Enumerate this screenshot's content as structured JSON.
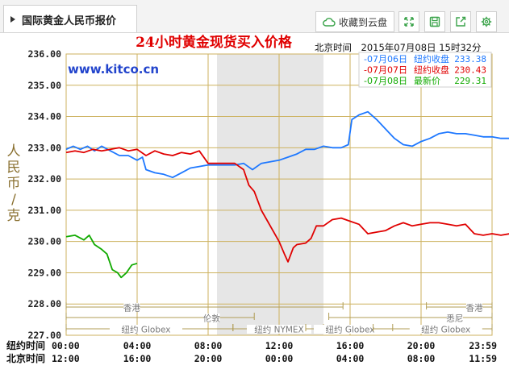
{
  "tab": {
    "title": "国际黄金人民币报价"
  },
  "toolbar": {
    "save_cloud_label": "收藏到云盘"
  },
  "colors": {
    "day1": "#1e78ff",
    "day2": "#e00000",
    "day3": "#11aa00",
    "title": "#e00000",
    "kitco": "#2244cc",
    "grid": "#cdb25f",
    "shade": "#e6e6e6"
  },
  "chart_data": {
    "type": "line",
    "title": "24小时黄金现货买入价格",
    "watermark": "www.kitco.cn",
    "timestamp": "北京时间　2015年07月08日 15时32分",
    "ylabel": "人民币/克",
    "ylim": [
      227,
      236
    ],
    "yticks": [
      "236.00",
      "235.00",
      "234.00",
      "233.00",
      "232.00",
      "231.00",
      "230.00",
      "229.00",
      "228.00",
      "227.00"
    ],
    "x_hours": [
      0,
      24
    ],
    "xaxis_rows": [
      {
        "label": "纽约时间",
        "ticks": [
          "00:00",
          "04:00",
          "08:00",
          "12:00",
          "16:00",
          "20:00",
          "23:59"
        ]
      },
      {
        "label": "北京时间",
        "ticks": [
          "12:00",
          "16:00",
          "20:00",
          "00:00",
          "04:00",
          "08:00",
          "11:59"
        ]
      }
    ],
    "markets": [
      "香港",
      "伦敦",
      "纽约 Globex",
      "纽约 NYMEX",
      "纽约 Globex",
      "香港",
      "悉尼",
      "纽约 Globex"
    ],
    "legend": [
      {
        "date": "07月06日",
        "label": "纽约收盘",
        "value": "233.38"
      },
      {
        "date": "07月07日",
        "label": "纽约收盘",
        "value": "230.43"
      },
      {
        "date": "07月08日",
        "label": "最新价",
        "value": "229.31"
      }
    ],
    "series": [
      {
        "name": "07月06日",
        "points": [
          [
            0,
            232.95
          ],
          [
            0.4,
            233.05
          ],
          [
            0.8,
            232.95
          ],
          [
            1.2,
            233.05
          ],
          [
            1.6,
            232.9
          ],
          [
            2,
            233.05
          ],
          [
            2.5,
            232.9
          ],
          [
            3,
            232.75
          ],
          [
            3.5,
            232.75
          ],
          [
            4,
            232.6
          ],
          [
            4.3,
            232.7
          ],
          [
            4.5,
            232.3
          ],
          [
            5,
            232.2
          ],
          [
            5.5,
            232.15
          ],
          [
            6,
            232.05
          ],
          [
            6.5,
            232.2
          ],
          [
            7,
            232.35
          ],
          [
            7.5,
            232.4
          ],
          [
            8,
            232.45
          ],
          [
            8.5,
            232.45
          ],
          [
            9,
            232.45
          ],
          [
            9.5,
            232.45
          ],
          [
            10,
            232.5
          ],
          [
            10.5,
            232.3
          ],
          [
            11,
            232.5
          ],
          [
            11.5,
            232.55
          ],
          [
            12,
            232.6
          ],
          [
            12.5,
            232.7
          ],
          [
            13,
            232.8
          ],
          [
            13.5,
            232.95
          ],
          [
            14,
            232.95
          ],
          [
            14.5,
            233.05
          ],
          [
            15,
            233.0
          ],
          [
            15.5,
            233.0
          ],
          [
            15.9,
            233.1
          ],
          [
            16.1,
            233.9
          ],
          [
            16.5,
            234.05
          ],
          [
            17,
            234.15
          ],
          [
            17.5,
            233.9
          ],
          [
            18,
            233.6
          ],
          [
            18.5,
            233.3
          ],
          [
            19,
            233.1
          ],
          [
            19.5,
            233.05
          ],
          [
            20,
            233.2
          ],
          [
            20.5,
            233.3
          ],
          [
            21,
            233.45
          ],
          [
            21.5,
            233.5
          ],
          [
            22,
            233.45
          ],
          [
            22.5,
            233.45
          ],
          [
            23,
            233.4
          ],
          [
            23.5,
            233.35
          ],
          [
            24,
            233.35
          ],
          [
            24.5,
            233.3
          ],
          [
            25,
            233.3
          ],
          [
            25.5,
            233.25
          ],
          [
            26,
            233.25
          ],
          [
            26.5,
            233.2
          ],
          [
            27,
            233.2
          ],
          [
            27.5,
            233.15
          ],
          [
            28,
            233.05
          ],
          [
            28.5,
            233.0
          ],
          [
            29,
            232.95
          ]
        ]
      },
      {
        "name": "07月07日",
        "points": [
          [
            0,
            232.85
          ],
          [
            0.5,
            232.9
          ],
          [
            1,
            232.85
          ],
          [
            1.5,
            232.95
          ],
          [
            2,
            232.9
          ],
          [
            2.5,
            232.95
          ],
          [
            3,
            233.0
          ],
          [
            3.5,
            232.9
          ],
          [
            4,
            232.95
          ],
          [
            4.5,
            232.75
          ],
          [
            5,
            232.9
          ],
          [
            5.5,
            232.8
          ],
          [
            6,
            232.75
          ],
          [
            6.5,
            232.85
          ],
          [
            7,
            232.8
          ],
          [
            7.5,
            232.9
          ],
          [
            8,
            232.5
          ],
          [
            8.5,
            232.5
          ],
          [
            9,
            232.5
          ],
          [
            9.5,
            232.5
          ],
          [
            10,
            232.3
          ],
          [
            10.3,
            231.8
          ],
          [
            10.6,
            231.6
          ],
          [
            11,
            231.0
          ],
          [
            11.3,
            230.7
          ],
          [
            11.6,
            230.4
          ],
          [
            12,
            230.0
          ],
          [
            12.3,
            229.6
          ],
          [
            12.5,
            229.35
          ],
          [
            12.8,
            229.8
          ],
          [
            13,
            229.9
          ],
          [
            13.5,
            229.95
          ],
          [
            13.8,
            230.1
          ],
          [
            14.1,
            230.5
          ],
          [
            14.5,
            230.5
          ],
          [
            15,
            230.7
          ],
          [
            15.5,
            230.75
          ],
          [
            16,
            230.65
          ],
          [
            16.5,
            230.55
          ],
          [
            17,
            230.25
          ],
          [
            17.5,
            230.3
          ],
          [
            18,
            230.35
          ],
          [
            18.5,
            230.5
          ],
          [
            19,
            230.6
          ],
          [
            19.5,
            230.5
          ],
          [
            20,
            230.55
          ],
          [
            20.5,
            230.6
          ],
          [
            21,
            230.6
          ],
          [
            21.5,
            230.55
          ],
          [
            22,
            230.5
          ],
          [
            22.5,
            230.55
          ],
          [
            23,
            230.25
          ],
          [
            23.5,
            230.2
          ],
          [
            24,
            230.25
          ],
          [
            24.5,
            230.2
          ],
          [
            25,
            230.25
          ],
          [
            25.5,
            230.25
          ],
          [
            25.9,
            230.5
          ],
          [
            26.2,
            230.3
          ],
          [
            26.5,
            230.05
          ],
          [
            27,
            229.9
          ],
          [
            27.5,
            229.95
          ],
          [
            28,
            230.0
          ],
          [
            28.5,
            230.05
          ],
          [
            29,
            230.1
          ]
        ]
      },
      {
        "name": "07月08日",
        "points": [
          [
            0,
            230.15
          ],
          [
            0.5,
            230.2
          ],
          [
            1,
            230.05
          ],
          [
            1.3,
            230.2
          ],
          [
            1.6,
            229.9
          ],
          [
            2,
            229.75
          ],
          [
            2.3,
            229.6
          ],
          [
            2.6,
            229.1
          ],
          [
            2.9,
            229.0
          ],
          [
            3.1,
            228.85
          ],
          [
            3.4,
            229.0
          ],
          [
            3.7,
            229.25
          ],
          [
            4,
            229.3
          ]
        ]
      }
    ]
  }
}
